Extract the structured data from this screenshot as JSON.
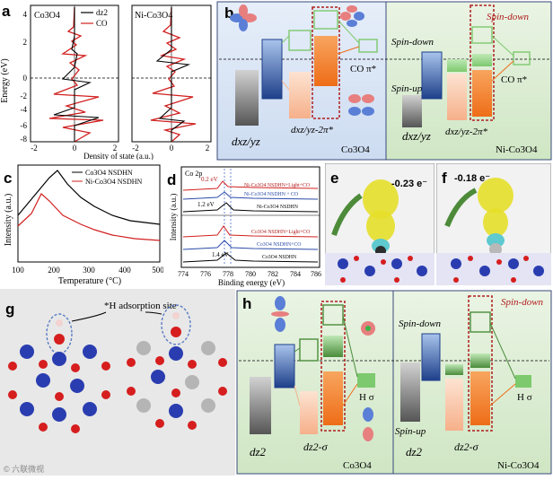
{
  "panel_a": {
    "label": "a",
    "ylabel": "Energy (eV)",
    "xlabel": "Density of state (a.u.)",
    "left_title": "Co3O4",
    "right_title": "Ni-Co3O4",
    "legend_dz2": "dz2",
    "legend_co": "CO",
    "yticks": [
      "4",
      "2",
      "0",
      "-2",
      "-4",
      "-6",
      "-8"
    ],
    "xticks_left": [
      "-2",
      "0",
      "2"
    ],
    "xticks_right": [
      "-2",
      "0",
      "2"
    ]
  },
  "panel_b": {
    "label": "b",
    "spin_down_red": "Spin-down",
    "spin_down": "Spin-down",
    "spin_up": "Spin-up",
    "co_pi_left": "CO π*",
    "co_pi_right": "CO π*",
    "dxz_left": "dxz/yz",
    "dxz2pi_left": "dxz/yz-2π*",
    "dxz_right": "dxz/yz",
    "dxz2pi_right": "dxz/yz-2π*",
    "name_left": "Co3O4",
    "name_right": "Ni-Co3O4"
  },
  "panel_c": {
    "label": "c",
    "ylabel": "Intensity (a.u.)",
    "xlabel": "Temperature (°C)",
    "xticks": [
      "100",
      "200",
      "300",
      "400",
      "500"
    ],
    "legend_black": "Co3O4 NSDHN",
    "legend_red": "Ni-Co3O4 NSDHN"
  },
  "panel_d": {
    "label": "d",
    "ylabel": "Intensity (a.u.)",
    "xlabel": "Binding energy (eV)",
    "title": "Co 2p",
    "xticks": [
      "774",
      "776",
      "778",
      "780",
      "782",
      "784",
      "786"
    ],
    "shift_02": "0.2 eV",
    "shift_12": "1.2 eV",
    "shift_14": "1.4 eV",
    "curve_1": "Ni-Co3O4 NSDHN+Light+CO",
    "curve_2": "Ni-Co3O4 NSDHN + CO",
    "curve_3": "Ni-Co3O4 NSDHN",
    "curve_4": "Co3O4 NSDHN+Light+CO",
    "curve_5": "Co3O4 NSDHN+CO",
    "curve_6": "Co3O4 NSDHN"
  },
  "panel_e": {
    "label": "e",
    "charge": "-0.23 e⁻"
  },
  "panel_f": {
    "label": "f",
    "charge": "-0.18 e⁻"
  },
  "panel_g": {
    "label": "g",
    "annotation": "*H adsorption site"
  },
  "panel_h": {
    "label": "h",
    "spin_down_red": "Spin-down",
    "spin_down": "Spin-down",
    "spin_up": "Spin-up",
    "h_sigma_left": "H σ",
    "h_sigma_right": "H σ",
    "dz2_left": "dz2",
    "dz2sigma_left": "dz2-σ",
    "dz2_right": "dz2",
    "dz2sigma_right": "dz2-σ",
    "name_left": "Co3O4",
    "name_right": "Ni-Co3O4"
  },
  "watermark": "© 六联微视"
}
